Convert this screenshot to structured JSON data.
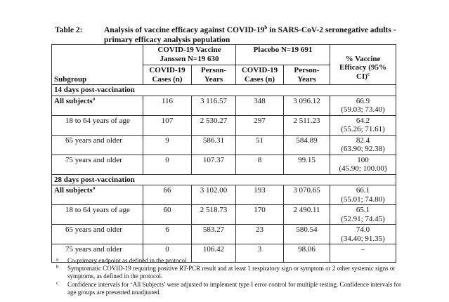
{
  "title": {
    "label": "Table 2:",
    "text": "Analysis of vaccine efficacy against COVID-19",
    "sup": "b",
    "text2": " in SARS-CoV-2 seronegative adults - primary efficacy analysis population"
  },
  "headers": {
    "vaccine_group": "COVID-19 Vaccine Janssen N=19 630",
    "placebo_group": "Placebo N=19 691",
    "efficacy": "% Vaccine Efficacy (95% CI)",
    "efficacy_sup": "c",
    "subgroup": "Subgroup",
    "cases": "COVID-19 Cases (n)",
    "person_years": "Person-Years"
  },
  "sections": [
    {
      "title": "14 days post-vaccination",
      "rows": [
        {
          "subgroup": "All subjects",
          "sup": "a",
          "bold": true,
          "vac_cases": "116",
          "vac_py": "3 116.57",
          "pla_cases": "348",
          "pla_py": "3 096.12",
          "ve": "66.9",
          "ci": "(59.03; 73.40)"
        },
        {
          "subgroup": "18 to 64 years of age",
          "vac_cases": "107",
          "vac_py": "2 530.27",
          "pla_cases": "297",
          "pla_py": "2 511.23",
          "ve": "64.2",
          "ci": "(55.26; 71.61)"
        },
        {
          "subgroup": "65 years and older",
          "vac_cases": "9",
          "vac_py": "586.31",
          "pla_cases": "51",
          "pla_py": "584.89",
          "ve": "82.4",
          "ci": "(63.90; 92.38)"
        },
        {
          "subgroup": "75 years and older",
          "vac_cases": "0",
          "vac_py": "107.37",
          "pla_cases": "8",
          "pla_py": "99.15",
          "ve": "100",
          "ci": "(45.90; 100.00)"
        }
      ]
    },
    {
      "title": "28 days post-vaccination",
      "rows": [
        {
          "subgroup": "All subjects",
          "sup": "a",
          "bold": true,
          "vac_cases": "66",
          "vac_py": "3 102.00",
          "pla_cases": "193",
          "pla_py": "3 070.65",
          "ve": "66.1",
          "ci": "(55.01; 74.80)"
        },
        {
          "subgroup": "18 to 64 years of age",
          "vac_cases": "60",
          "vac_py": "2 518.73",
          "pla_cases": "170",
          "pla_py": "2 490.11",
          "ve": "65.1",
          "ci": "(52.91; 74.45)"
        },
        {
          "subgroup": "65 years and older",
          "vac_cases": "6",
          "vac_py": "583.27",
          "pla_cases": "23",
          "pla_py": "580.54",
          "ve": "74.0",
          "ci": "(34.40; 91.35)"
        },
        {
          "subgroup": "75 years and older",
          "vac_cases": "0",
          "vac_py": "106.42",
          "pla_cases": "3",
          "pla_py": "98.06",
          "ve": "–",
          "ci": ""
        }
      ]
    }
  ],
  "footnotes": [
    {
      "mark": "a",
      "text": "Co-primary endpoint as defined in the protocol."
    },
    {
      "mark": "b",
      "text": "Symptomatic COVID-19 requiring positive RT-PCR result and at least 1 respiratory sign or symptom or 2 other systemic signs or symptoms, as defined in the protocol."
    },
    {
      "mark": "c",
      "text": "Confidence intervals for ‘All Subjects’ were adjusted to implement type I error control for multiple testing. Confidence intervals for age groups are presented unadjusted."
    }
  ]
}
